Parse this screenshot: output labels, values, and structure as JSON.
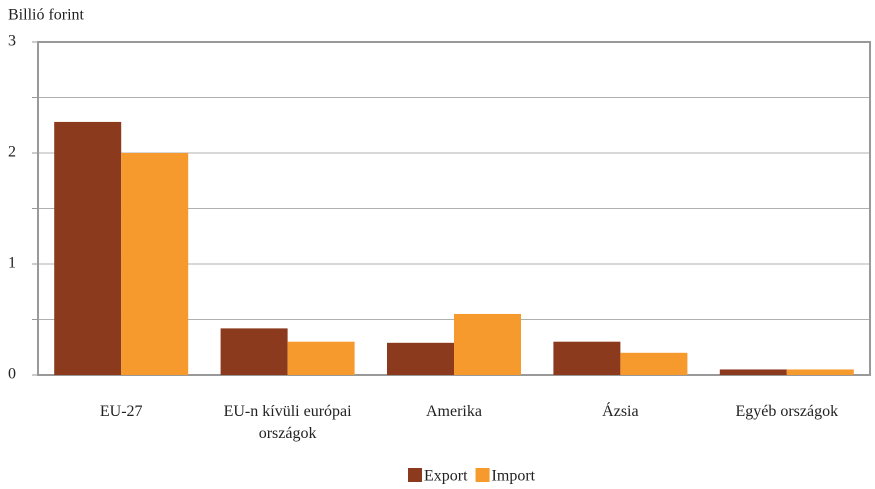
{
  "chart_data": {
    "type": "bar",
    "y_axis_label": "Billió forint",
    "categories": [
      "EU-27",
      "EU-n kívüli európai országok",
      "Amerika",
      "Ázsia",
      "Egyéb országok"
    ],
    "series": [
      {
        "name": "Export",
        "color": "#8b3a1e",
        "values": [
          2.28,
          0.42,
          0.29,
          0.3,
          0.05
        ]
      },
      {
        "name": "Import",
        "color": "#f79a2e",
        "values": [
          2.0,
          0.3,
          0.55,
          0.2,
          0.05
        ]
      }
    ],
    "ylim": [
      0,
      3
    ],
    "yticks": [
      0,
      1,
      2,
      3
    ],
    "minor_yticks": [
      0.5,
      1.5,
      2.5
    ],
    "grid": true,
    "legend": "bottom"
  }
}
